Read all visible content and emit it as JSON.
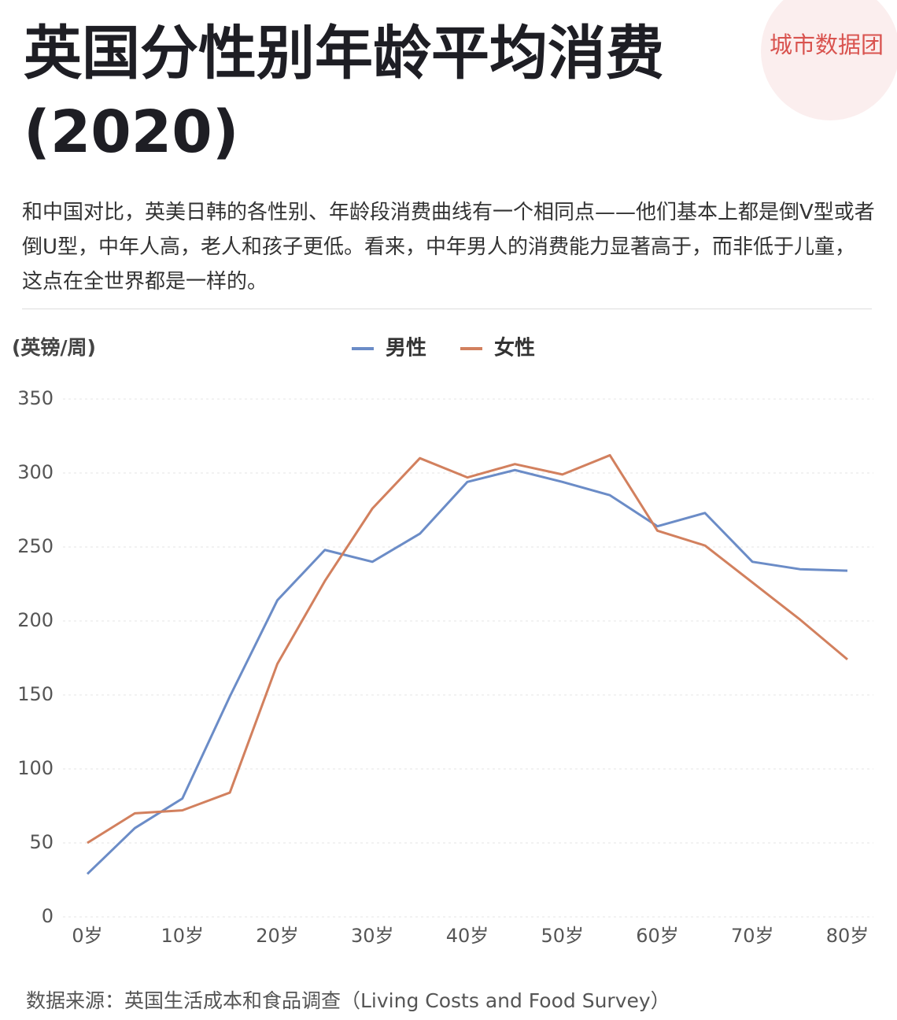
{
  "chart_data": {
    "type": "line",
    "title": "英国分性别年龄平均消费(2020)",
    "subtitle": "和中国对比，英美日韩的各性别、年龄段消费曲线有一个相同点——他们基本上都是倒V型或者倒U型，中年人高，老人和孩子更低。看来，中年男人的消费能力显著高于，而非低于儿童，这点在全世界都是一样的。",
    "logo": "城市数据团",
    "y_label": "(英镑/周)",
    "source": "数据来源：英国生活成本和食品调查（Living Costs and Food Survey）",
    "categories": [
      "0岁",
      null,
      "10岁",
      null,
      "20岁",
      null,
      "30岁",
      null,
      "40岁",
      null,
      "50岁",
      null,
      "60岁",
      null,
      "70岁",
      null,
      "80岁"
    ],
    "series": [
      {
        "name": "男性",
        "color": "#6b8cc7",
        "values": [
          29,
          60,
          80,
          149,
          214,
          248,
          240,
          259,
          294,
          302,
          294,
          285,
          264,
          273,
          240,
          235,
          234
        ]
      },
      {
        "name": "女性",
        "color": "#d2805e",
        "values": [
          50,
          70,
          72,
          84,
          171,
          227,
          276,
          310,
          297,
          306,
          299,
          312,
          261,
          251,
          226,
          201,
          174
        ]
      }
    ],
    "ylim": [
      0,
      350
    ],
    "yticks": [
      0,
      50,
      100,
      150,
      200,
      250,
      300,
      350
    ],
    "grid": true,
    "legend": "top"
  }
}
